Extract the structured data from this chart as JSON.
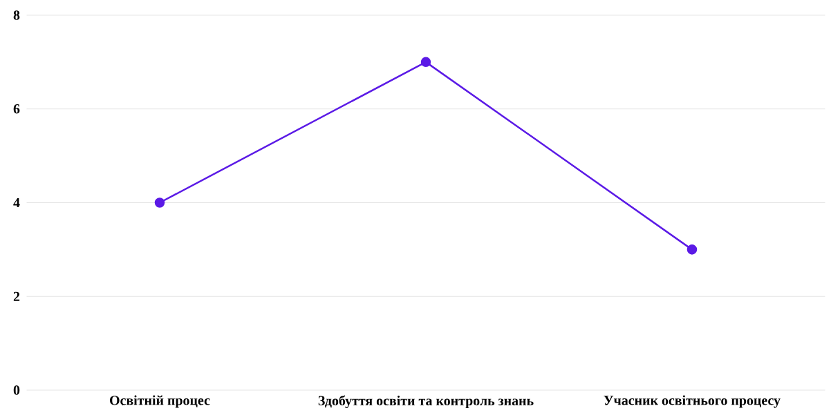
{
  "chart_data": {
    "type": "line",
    "categories": [
      "Освітній процес",
      "Здобуття освіти та контроль знань",
      "Учасник освітнього процесу"
    ],
    "series": [
      {
        "color": "#5b1ae6",
        "values": [
          4,
          7,
          3
        ]
      }
    ],
    "ylim": [
      0,
      8
    ],
    "yticks": [
      0,
      2,
      4,
      6,
      8
    ],
    "grid": "y",
    "marker": "circle",
    "line_style": "solid"
  }
}
